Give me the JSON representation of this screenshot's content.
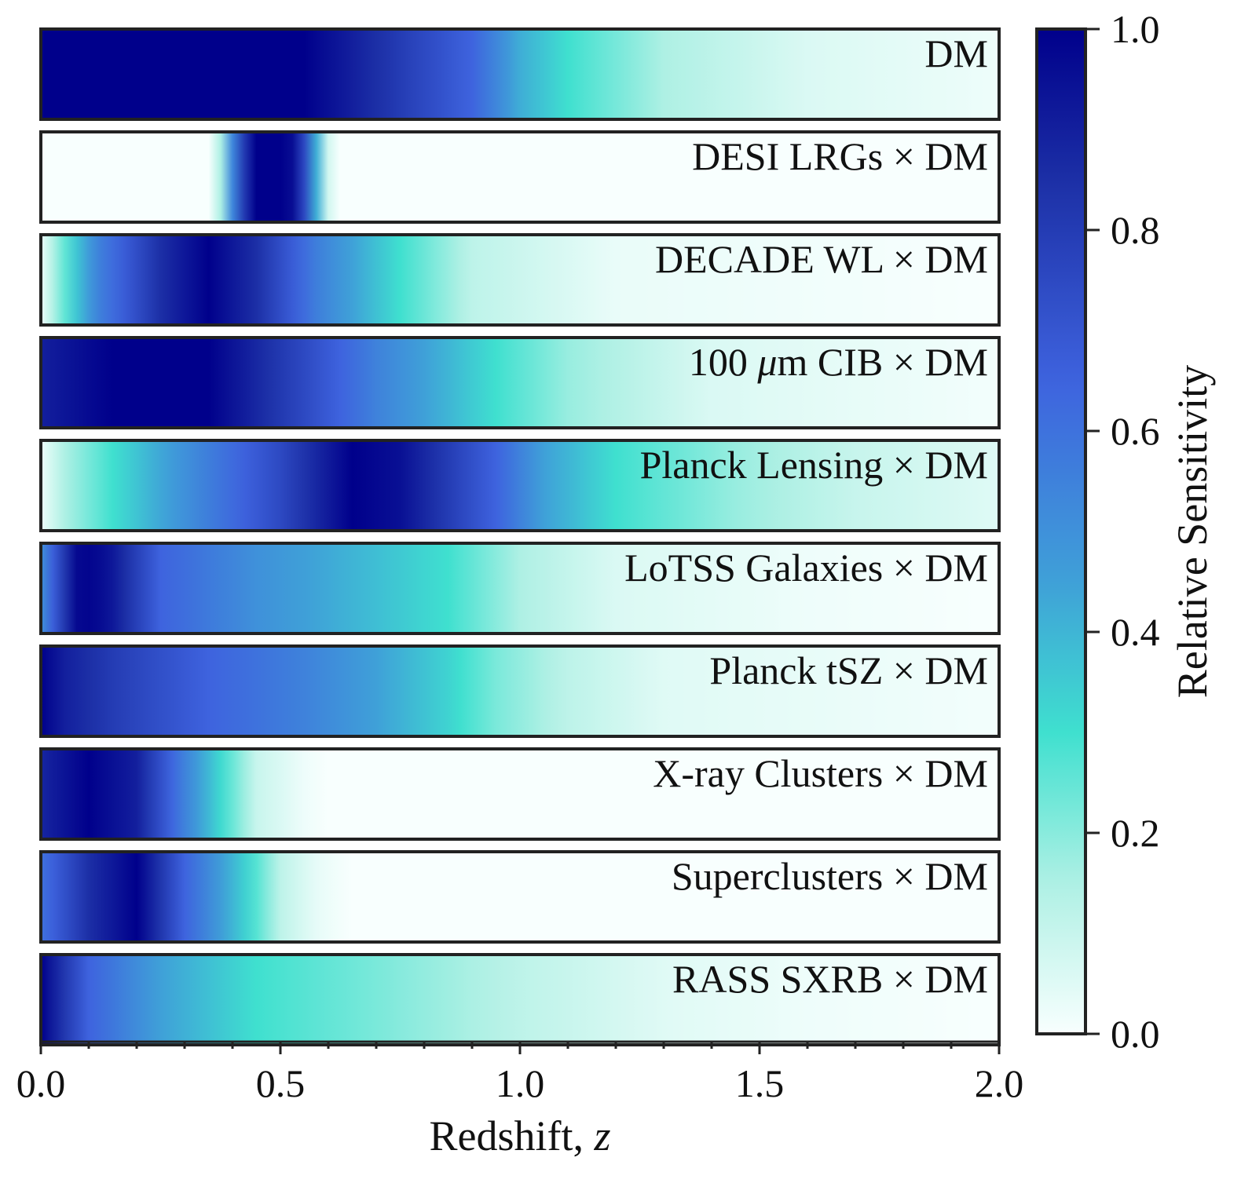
{
  "chart_data": {
    "type": "heatmap",
    "xlabel_main": "Redshift, ",
    "xlabel_var": "z",
    "xlim": [
      0,
      2
    ],
    "x_major_ticks": [
      0.0,
      0.5,
      1.0,
      1.5,
      2.0
    ],
    "x_tick_labels": [
      "0.0",
      "0.5",
      "1.0",
      "1.5",
      "2.0"
    ],
    "x_minor_step": 0.1,
    "colormap": [
      {
        "v": 0.0,
        "color": "#f8fffe"
      },
      {
        "v": 0.15,
        "color": "#aef0e4"
      },
      {
        "v": 0.3,
        "color": "#3fe0cf"
      },
      {
        "v": 0.45,
        "color": "#3fa0d8"
      },
      {
        "v": 0.65,
        "color": "#3e63de"
      },
      {
        "v": 0.85,
        "color": "#1c2fa6"
      },
      {
        "v": 1.0,
        "color": "#00008b"
      }
    ],
    "colorbar": {
      "label": "Relative Sensitivity",
      "range": [
        0,
        1
      ],
      "ticks": [
        0.0,
        0.2,
        0.4,
        0.6,
        0.8,
        1.0
      ],
      "tick_labels": [
        "0.0",
        "0.2",
        "0.4",
        "0.6",
        "0.8",
        "1.0"
      ]
    },
    "rows": [
      {
        "label": "DM",
        "profile": [
          [
            0,
            1
          ],
          [
            0.55,
            1
          ],
          [
            0.75,
            0.8
          ],
          [
            0.9,
            0.65
          ],
          [
            1.0,
            0.42
          ],
          [
            1.1,
            0.3
          ],
          [
            1.3,
            0.15
          ],
          [
            1.6,
            0.06
          ],
          [
            2.0,
            0.02
          ]
        ]
      },
      {
        "label": "DESI LRGs × DM",
        "profile": [
          [
            0,
            0
          ],
          [
            0.36,
            0
          ],
          [
            0.38,
            0.2
          ],
          [
            0.41,
            0.7
          ],
          [
            0.45,
            1
          ],
          [
            0.52,
            1
          ],
          [
            0.55,
            0.75
          ],
          [
            0.58,
            0.35
          ],
          [
            0.6,
            0.08
          ],
          [
            0.62,
            0
          ],
          [
            2.0,
            0
          ]
        ]
      },
      {
        "label": "DECADE WL × DM",
        "profile": [
          [
            0,
            0.02
          ],
          [
            0.02,
            0.12
          ],
          [
            0.06,
            0.3
          ],
          [
            0.12,
            0.55
          ],
          [
            0.25,
            0.85
          ],
          [
            0.35,
            1
          ],
          [
            0.45,
            0.85
          ],
          [
            0.58,
            0.55
          ],
          [
            0.75,
            0.3
          ],
          [
            0.9,
            0.12
          ],
          [
            1.2,
            0.03
          ],
          [
            2.0,
            0
          ]
        ]
      },
      {
        "label": "100 μm CIB × DM",
        "labelPrefix": "100 ",
        "labelItalic": "μ",
        "labelSuffix": "m CIB × DM",
        "profile": [
          [
            0,
            0.9
          ],
          [
            0.15,
            1
          ],
          [
            0.35,
            1
          ],
          [
            0.55,
            0.75
          ],
          [
            0.7,
            0.55
          ],
          [
            0.85,
            0.4
          ],
          [
            0.95,
            0.3
          ],
          [
            1.1,
            0.18
          ],
          [
            1.4,
            0.06
          ],
          [
            2.0,
            0.01
          ]
        ]
      },
      {
        "label": "Planck Lensing × DM",
        "profile": [
          [
            0,
            0.02
          ],
          [
            0.05,
            0.15
          ],
          [
            0.15,
            0.3
          ],
          [
            0.3,
            0.5
          ],
          [
            0.5,
            0.75
          ],
          [
            0.65,
            1
          ],
          [
            0.75,
            0.95
          ],
          [
            0.95,
            0.65
          ],
          [
            1.05,
            0.45
          ],
          [
            1.2,
            0.3
          ],
          [
            1.45,
            0.18
          ],
          [
            1.7,
            0.1
          ],
          [
            2.0,
            0.05
          ]
        ]
      },
      {
        "label": "LoTSS Galaxies × DM",
        "profile": [
          [
            0,
            0.5
          ],
          [
            0.03,
            0.7
          ],
          [
            0.08,
            1
          ],
          [
            0.14,
            0.95
          ],
          [
            0.25,
            0.65
          ],
          [
            0.45,
            0.5
          ],
          [
            0.7,
            0.38
          ],
          [
            0.85,
            0.3
          ],
          [
            1.0,
            0.15
          ],
          [
            1.2,
            0.06
          ],
          [
            1.6,
            0.02
          ],
          [
            2.0,
            0
          ]
        ]
      },
      {
        "label": "Planck tSZ × DM",
        "profile": [
          [
            0,
            1
          ],
          [
            0.05,
            0.9
          ],
          [
            0.15,
            0.8
          ],
          [
            0.35,
            0.65
          ],
          [
            0.55,
            0.55
          ],
          [
            0.7,
            0.45
          ],
          [
            0.85,
            0.33
          ],
          [
            0.95,
            0.22
          ],
          [
            1.1,
            0.12
          ],
          [
            1.3,
            0.05
          ],
          [
            2.0,
            0.01
          ]
        ]
      },
      {
        "label": "X-ray Clusters × DM",
        "profile": [
          [
            0,
            0.88
          ],
          [
            0.1,
            1
          ],
          [
            0.2,
            0.9
          ],
          [
            0.3,
            0.55
          ],
          [
            0.38,
            0.3
          ],
          [
            0.45,
            0.1
          ],
          [
            0.55,
            0.02
          ],
          [
            0.6,
            0
          ],
          [
            2.0,
            0
          ]
        ]
      },
      {
        "label": "Superclusters × DM",
        "profile": [
          [
            0,
            0.6
          ],
          [
            0.1,
            0.85
          ],
          [
            0.2,
            1
          ],
          [
            0.3,
            0.65
          ],
          [
            0.38,
            0.45
          ],
          [
            0.44,
            0.3
          ],
          [
            0.5,
            0.12
          ],
          [
            0.58,
            0.03
          ],
          [
            0.65,
            0
          ],
          [
            2.0,
            0
          ]
        ]
      },
      {
        "label": "RASS SXRB × DM",
        "profile": [
          [
            0,
            1
          ],
          [
            0.04,
            0.85
          ],
          [
            0.1,
            0.65
          ],
          [
            0.25,
            0.45
          ],
          [
            0.45,
            0.3
          ],
          [
            0.7,
            0.22
          ],
          [
            1.0,
            0.12
          ],
          [
            1.3,
            0.05
          ],
          [
            1.6,
            0.02
          ],
          [
            2.0,
            0
          ]
        ]
      }
    ]
  }
}
